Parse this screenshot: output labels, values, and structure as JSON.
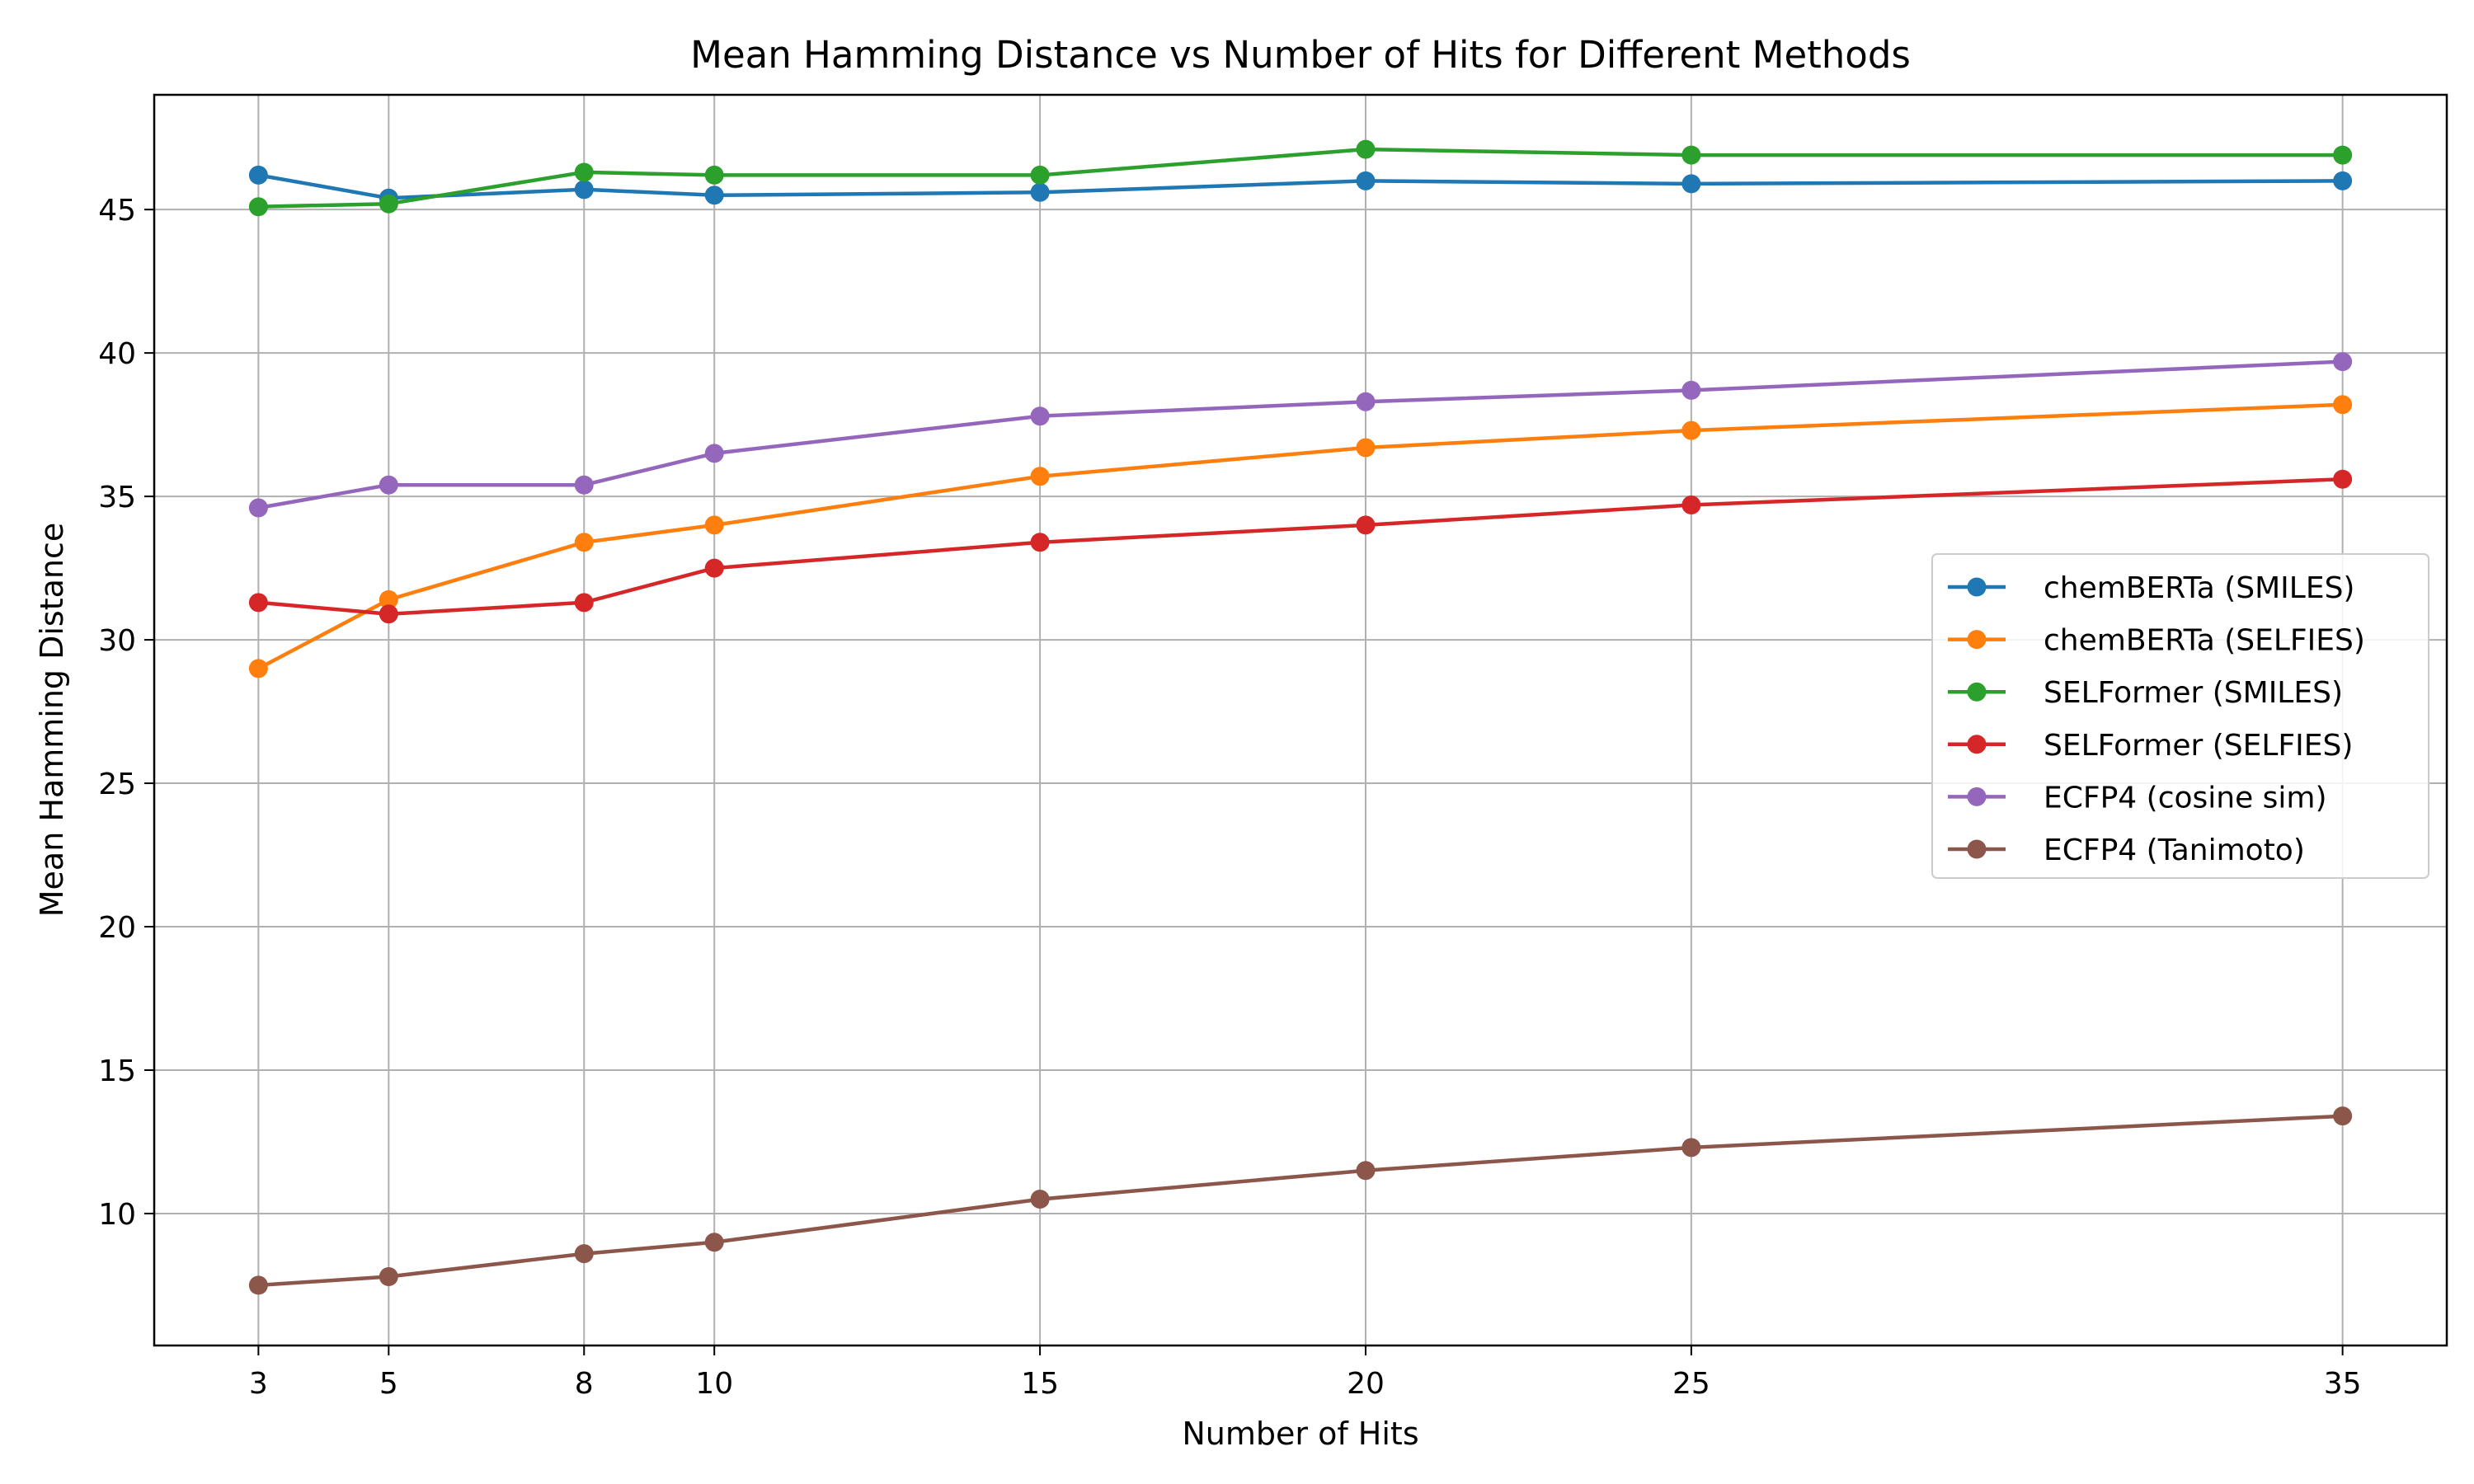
{
  "chart_data": {
    "type": "line",
    "title": "Mean Hamming Distance vs Number of Hits for Different Methods",
    "xlabel": "Number of Hits",
    "ylabel": "Mean Hamming Distance",
    "x": [
      3,
      5,
      8,
      10,
      15,
      20,
      25,
      35
    ],
    "xticks": [
      "3",
      "5",
      "8",
      "10",
      "15",
      "20",
      "25",
      "35"
    ],
    "xlim": [
      1.4,
      36.6
    ],
    "ylim": [
      5.4,
      49.0
    ],
    "yticks": [
      "10",
      "15",
      "20",
      "25",
      "30",
      "35",
      "40",
      "45"
    ],
    "grid": true,
    "legend_position": "center-right",
    "series": [
      {
        "name": "chemBERTa (SMILES)",
        "color": "#1f77b4",
        "values": [
          46.2,
          45.4,
          45.7,
          45.5,
          45.6,
          46.0,
          45.9,
          46.0
        ]
      },
      {
        "name": "chemBERTa (SELFIES)",
        "color": "#ff7f0e",
        "values": [
          29.0,
          31.4,
          33.4,
          34.0,
          35.7,
          36.7,
          37.3,
          38.2
        ]
      },
      {
        "name": "SELFormer (SMILES)",
        "color": "#2ca02c",
        "values": [
          45.1,
          45.2,
          46.3,
          46.2,
          46.2,
          47.1,
          46.9,
          46.9
        ]
      },
      {
        "name": "SELFormer (SELFIES)",
        "color": "#d62728",
        "values": [
          31.3,
          30.9,
          31.3,
          32.5,
          33.4,
          34.0,
          34.7,
          35.6
        ]
      },
      {
        "name": "ECFP4 (cosine sim)",
        "color": "#9467bd",
        "values": [
          34.6,
          35.4,
          35.4,
          36.5,
          37.8,
          38.3,
          38.7,
          39.7
        ]
      },
      {
        "name": "ECFP4 (Tanimoto)",
        "color": "#8c564b",
        "values": [
          7.5,
          7.8,
          8.6,
          9.0,
          10.5,
          11.5,
          12.3,
          13.4
        ]
      }
    ]
  }
}
